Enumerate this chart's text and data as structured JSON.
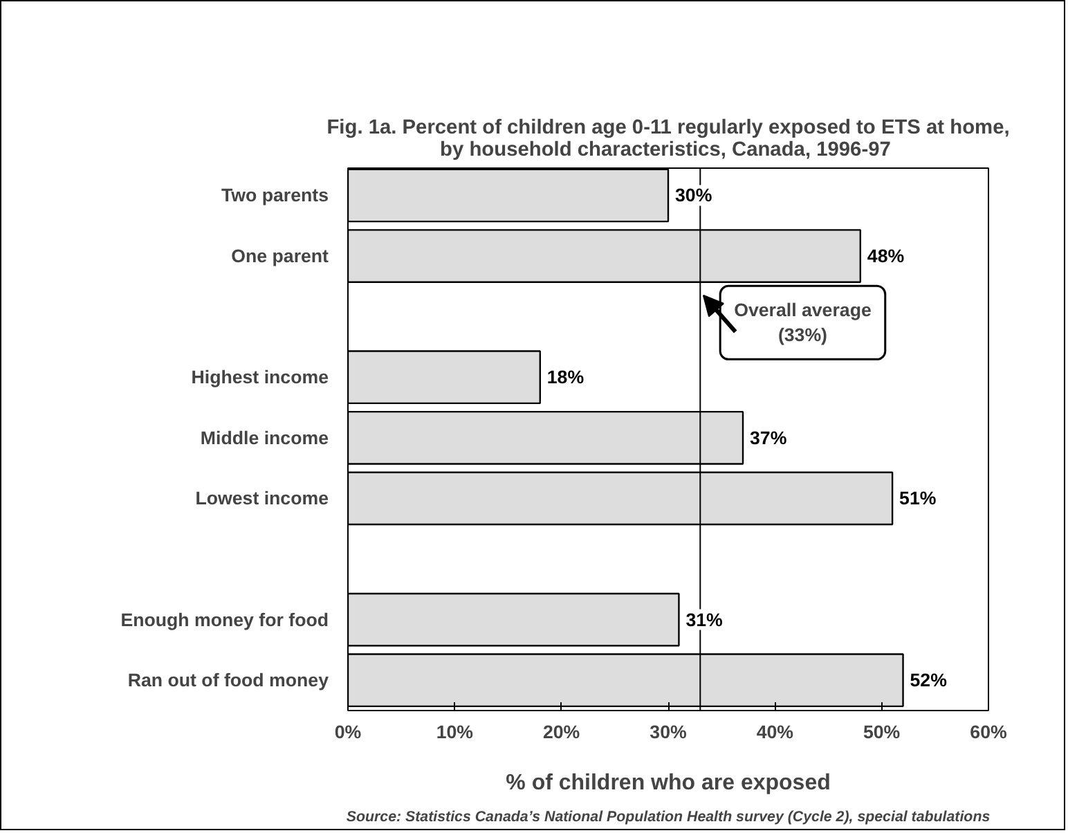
{
  "chart_data": {
    "type": "bar",
    "orientation": "horizontal",
    "title": "Fig. 1a. Percent of children age 0-11 regularly exposed to ETS at home,\nby household characteristics,  Canada, 1996-97",
    "xlabel": "% of children who are exposed",
    "categories": [
      "Two parents",
      "One parent",
      null,
      "Highest income",
      "Middle income",
      "Lowest income",
      null,
      "Enough money for food",
      "Ran out of food money"
    ],
    "values": [
      30,
      48,
      null,
      18,
      37,
      51,
      null,
      31,
      52
    ],
    "value_labels": [
      "30%",
      "48%",
      null,
      "18%",
      "37%",
      "51%",
      null,
      "31%",
      "52%"
    ],
    "color": "#dddddd",
    "xlim": [
      0,
      60
    ],
    "xticks": [
      {
        "value": 0,
        "label": "0%"
      },
      {
        "value": 10,
        "label": "10%"
      },
      {
        "value": 20,
        "label": "20%"
      },
      {
        "value": 30,
        "label": "30%"
      },
      {
        "value": 40,
        "label": "40%"
      },
      {
        "value": 50,
        "label": "50%"
      },
      {
        "value": 60,
        "label": "60%"
      }
    ],
    "ref_lines": [
      {
        "axis": "x",
        "value": 33,
        "label": "Overall average\n(33%)",
        "color": "#000000"
      }
    ],
    "annotations": [
      "Source: Statistics Canada’s National Population Health survey (Cycle 2), special tabulations"
    ],
    "grid": false
  }
}
